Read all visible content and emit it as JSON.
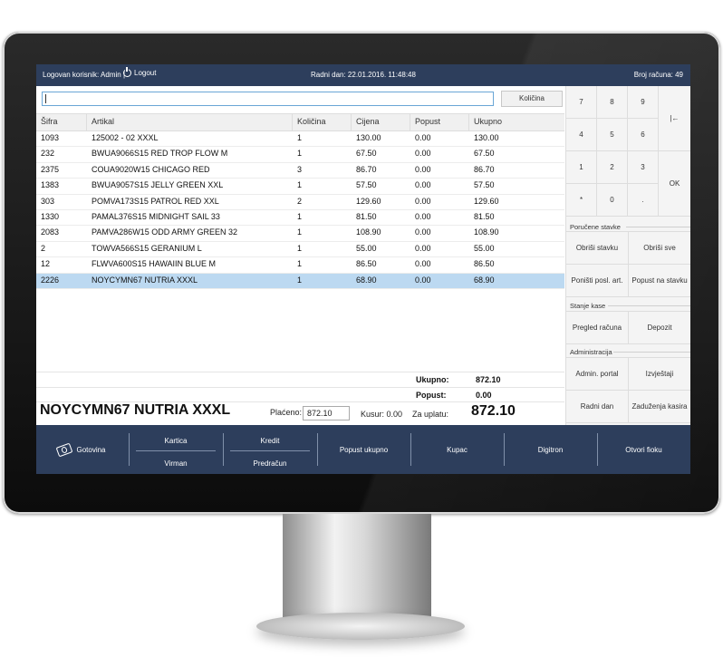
{
  "topbar": {
    "user": "Logovan korisnik: Admin |",
    "logout": "Logout",
    "date": "Radni dan: 22.01.2016. 11:48:48",
    "receipt": "Broj računa: 49"
  },
  "search": {
    "value": ""
  },
  "quantity_button": "Količina",
  "table": {
    "headers": [
      "Šifra",
      "Artikal",
      "Količina",
      "Cijena",
      "Popust",
      "Ukupno"
    ],
    "rows": [
      [
        "1093",
        "125002 - 02 XXXL",
        "1",
        "130.00",
        "0.00",
        "130.00"
      ],
      [
        "232",
        "BWUA9066S15 RED TROP FLOW M",
        "1",
        "67.50",
        "0.00",
        "67.50"
      ],
      [
        "2375",
        "COUA9020W15 CHICAGO RED",
        "3",
        "86.70",
        "0.00",
        "86.70"
      ],
      [
        "1383",
        "BWUA9057S15 JELLY GREEN XXL",
        "1",
        "57.50",
        "0.00",
        "57.50"
      ],
      [
        "303",
        "POMVA173S15 PATROL RED XXL",
        "2",
        "129.60",
        "0.00",
        "129.60"
      ],
      [
        "1330",
        "PAMAL376S15 MIDNIGHT SAIL 33",
        "1",
        "81.50",
        "0.00",
        "81.50"
      ],
      [
        "2083",
        "PAMVA286W15 ODD ARMY GREEN 32",
        "1",
        "108.90",
        "0.00",
        "108.90"
      ],
      [
        "2",
        "TOWVA566S15 GERANIUM L",
        "1",
        "55.00",
        "0.00",
        "55.00"
      ],
      [
        "12",
        "FLWVA600S15 HAWAIIN BLUE M",
        "1",
        "86.50",
        "0.00",
        "86.50"
      ],
      [
        "2226",
        "NOYCYMN67 NUTRIA XXXL",
        "1",
        "68.90",
        "0.00",
        "68.90"
      ]
    ]
  },
  "totals": {
    "ukupno_label": "Ukupno:",
    "ukupno_value": "872.10",
    "popust_label": "Popust:",
    "popust_value": "0.00"
  },
  "footer": {
    "selected_item": "NOYCYMN67 NUTRIA XXXL",
    "paid_label": "Plaćeno:",
    "paid_value": "872.10",
    "change": "Kusur: 0.00",
    "due_label": "Za uplatu:",
    "due_value": "872.10"
  },
  "keypad": {
    "k7": "7",
    "k8": "8",
    "k9": "9",
    "back": "|←",
    "k4": "4",
    "k5": "5",
    "k6": "6",
    "k1": "1",
    "k2": "2",
    "k3": "3",
    "ok": "OK",
    "star": "*",
    "k0": "0",
    "dot": "."
  },
  "side": {
    "ordered_title": "Poručene stavke",
    "delete_item": "Obriši stavku",
    "delete_all": "Obriši sve",
    "cancel_last": "Poništi posl. art.",
    "discount_item": "Popust na stavku",
    "cash_title": "Stanje kase",
    "receipts": "Pregled računa",
    "deposit": "Depozit",
    "admin_title": "Administracija",
    "admin_portal": "Admin. portal",
    "reports": "Izvještaji",
    "workday": "Radni dan",
    "cashier_debts": "Zaduženja kasira"
  },
  "bottom": {
    "cash": "Gotovina",
    "card": "Kartica",
    "transfer": "Virman",
    "credit": "Kredit",
    "invoice": "Predračun",
    "total_discount": "Popust ukupno",
    "customer": "Kupac",
    "calculator": "Digitron",
    "open_drawer": "Otvori fioku"
  },
  "colors": {
    "bar": "#2d3e5c",
    "selected_row": "#bcd9f1",
    "search_border": "#6aa6d6"
  }
}
